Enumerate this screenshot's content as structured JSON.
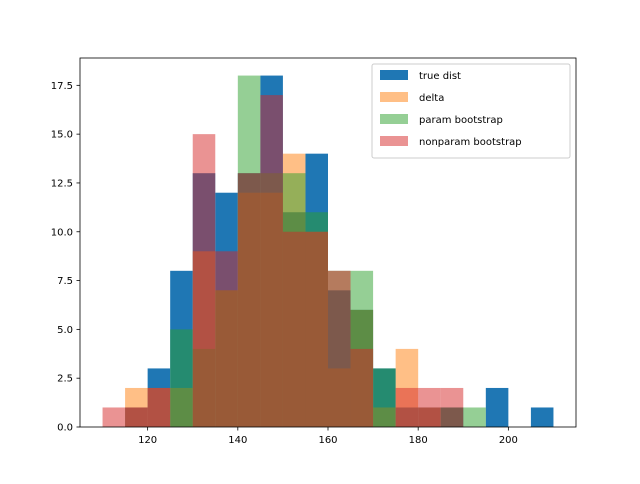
{
  "chart_data": {
    "type": "bar",
    "subtype": "overlaid-histogram",
    "title": "",
    "xlabel": "",
    "ylabel": "",
    "xlim": [
      105,
      215
    ],
    "ylim": [
      0,
      18.9
    ],
    "x_ticks": [
      "120",
      "140",
      "160",
      "180",
      "200"
    ],
    "x_tick_values": [
      120,
      140,
      160,
      180,
      200
    ],
    "y_ticks": [
      "0.0",
      "2.5",
      "5.0",
      "7.5",
      "10.0",
      "12.5",
      "15.0",
      "17.5"
    ],
    "y_tick_values": [
      0,
      2.5,
      5,
      7.5,
      10,
      12.5,
      15,
      17.5
    ],
    "grid": false,
    "legend_position": "upper right",
    "series": [
      {
        "name": "true dist",
        "color": "#1f77b4",
        "alpha": 1.0,
        "bins": [
          {
            "start": 115,
            "end": 120,
            "count": 1
          },
          {
            "start": 120,
            "end": 125,
            "count": 3
          },
          {
            "start": 125,
            "end": 130,
            "count": 8
          },
          {
            "start": 130,
            "end": 135,
            "count": 13
          },
          {
            "start": 135,
            "end": 140,
            "count": 12
          },
          {
            "start": 140,
            "end": 145,
            "count": 13
          },
          {
            "start": 145,
            "end": 150,
            "count": 18
          },
          {
            "start": 150,
            "end": 155,
            "count": 11
          },
          {
            "start": 155,
            "end": 160,
            "count": 14
          },
          {
            "start": 160,
            "end": 165,
            "count": 7
          },
          {
            "start": 165,
            "end": 170,
            "count": 6
          },
          {
            "start": 170,
            "end": 175,
            "count": 3
          },
          {
            "start": 175,
            "end": 180,
            "count": 1
          },
          {
            "start": 180,
            "end": 185,
            "count": 1
          },
          {
            "start": 185,
            "end": 190,
            "count": 1
          },
          {
            "start": 195,
            "end": 200,
            "count": 2
          },
          {
            "start": 205,
            "end": 210,
            "count": 1
          }
        ]
      },
      {
        "name": "delta",
        "color": "#ff7f0e",
        "alpha": 0.5,
        "bins": [
          {
            "start": 115,
            "end": 120,
            "count": 2
          },
          {
            "start": 120,
            "end": 125,
            "count": 2
          },
          {
            "start": 125,
            "end": 130,
            "count": 2
          },
          {
            "start": 130,
            "end": 135,
            "count": 9
          },
          {
            "start": 135,
            "end": 140,
            "count": 7
          },
          {
            "start": 140,
            "end": 145,
            "count": 12
          },
          {
            "start": 145,
            "end": 150,
            "count": 12
          },
          {
            "start": 150,
            "end": 155,
            "count": 14
          },
          {
            "start": 155,
            "end": 160,
            "count": 10
          },
          {
            "start": 160,
            "end": 165,
            "count": 3
          },
          {
            "start": 165,
            "end": 170,
            "count": 6
          },
          {
            "start": 170,
            "end": 175,
            "count": 1
          },
          {
            "start": 175,
            "end": 180,
            "count": 4
          },
          {
            "start": 180,
            "end": 185,
            "count": 1
          }
        ]
      },
      {
        "name": "param bootstrap",
        "color": "#2ca02c",
        "alpha": 0.5,
        "bins": [
          {
            "start": 125,
            "end": 130,
            "count": 5
          },
          {
            "start": 130,
            "end": 135,
            "count": 4
          },
          {
            "start": 135,
            "end": 140,
            "count": 7
          },
          {
            "start": 140,
            "end": 145,
            "count": 18
          },
          {
            "start": 145,
            "end": 150,
            "count": 13
          },
          {
            "start": 150,
            "end": 155,
            "count": 13
          },
          {
            "start": 155,
            "end": 160,
            "count": 11
          },
          {
            "start": 160,
            "end": 165,
            "count": 8
          },
          {
            "start": 165,
            "end": 170,
            "count": 8
          },
          {
            "start": 170,
            "end": 175,
            "count": 3
          },
          {
            "start": 185,
            "end": 190,
            "count": 1
          },
          {
            "start": 190,
            "end": 195,
            "count": 1
          }
        ]
      },
      {
        "name": "nonparam bootstrap",
        "color": "#d62728",
        "alpha": 0.5,
        "bins": [
          {
            "start": 110,
            "end": 115,
            "count": 1
          },
          {
            "start": 115,
            "end": 120,
            "count": 1
          },
          {
            "start": 120,
            "end": 125,
            "count": 2
          },
          {
            "start": 130,
            "end": 135,
            "count": 15
          },
          {
            "start": 135,
            "end": 140,
            "count": 9
          },
          {
            "start": 140,
            "end": 145,
            "count": 13
          },
          {
            "start": 145,
            "end": 150,
            "count": 17
          },
          {
            "start": 150,
            "end": 155,
            "count": 10
          },
          {
            "start": 155,
            "end": 160,
            "count": 10
          },
          {
            "start": 160,
            "end": 165,
            "count": 8
          },
          {
            "start": 165,
            "end": 170,
            "count": 4
          },
          {
            "start": 175,
            "end": 180,
            "count": 2
          },
          {
            "start": 180,
            "end": 185,
            "count": 2
          },
          {
            "start": 185,
            "end": 190,
            "count": 2
          }
        ]
      }
    ]
  }
}
